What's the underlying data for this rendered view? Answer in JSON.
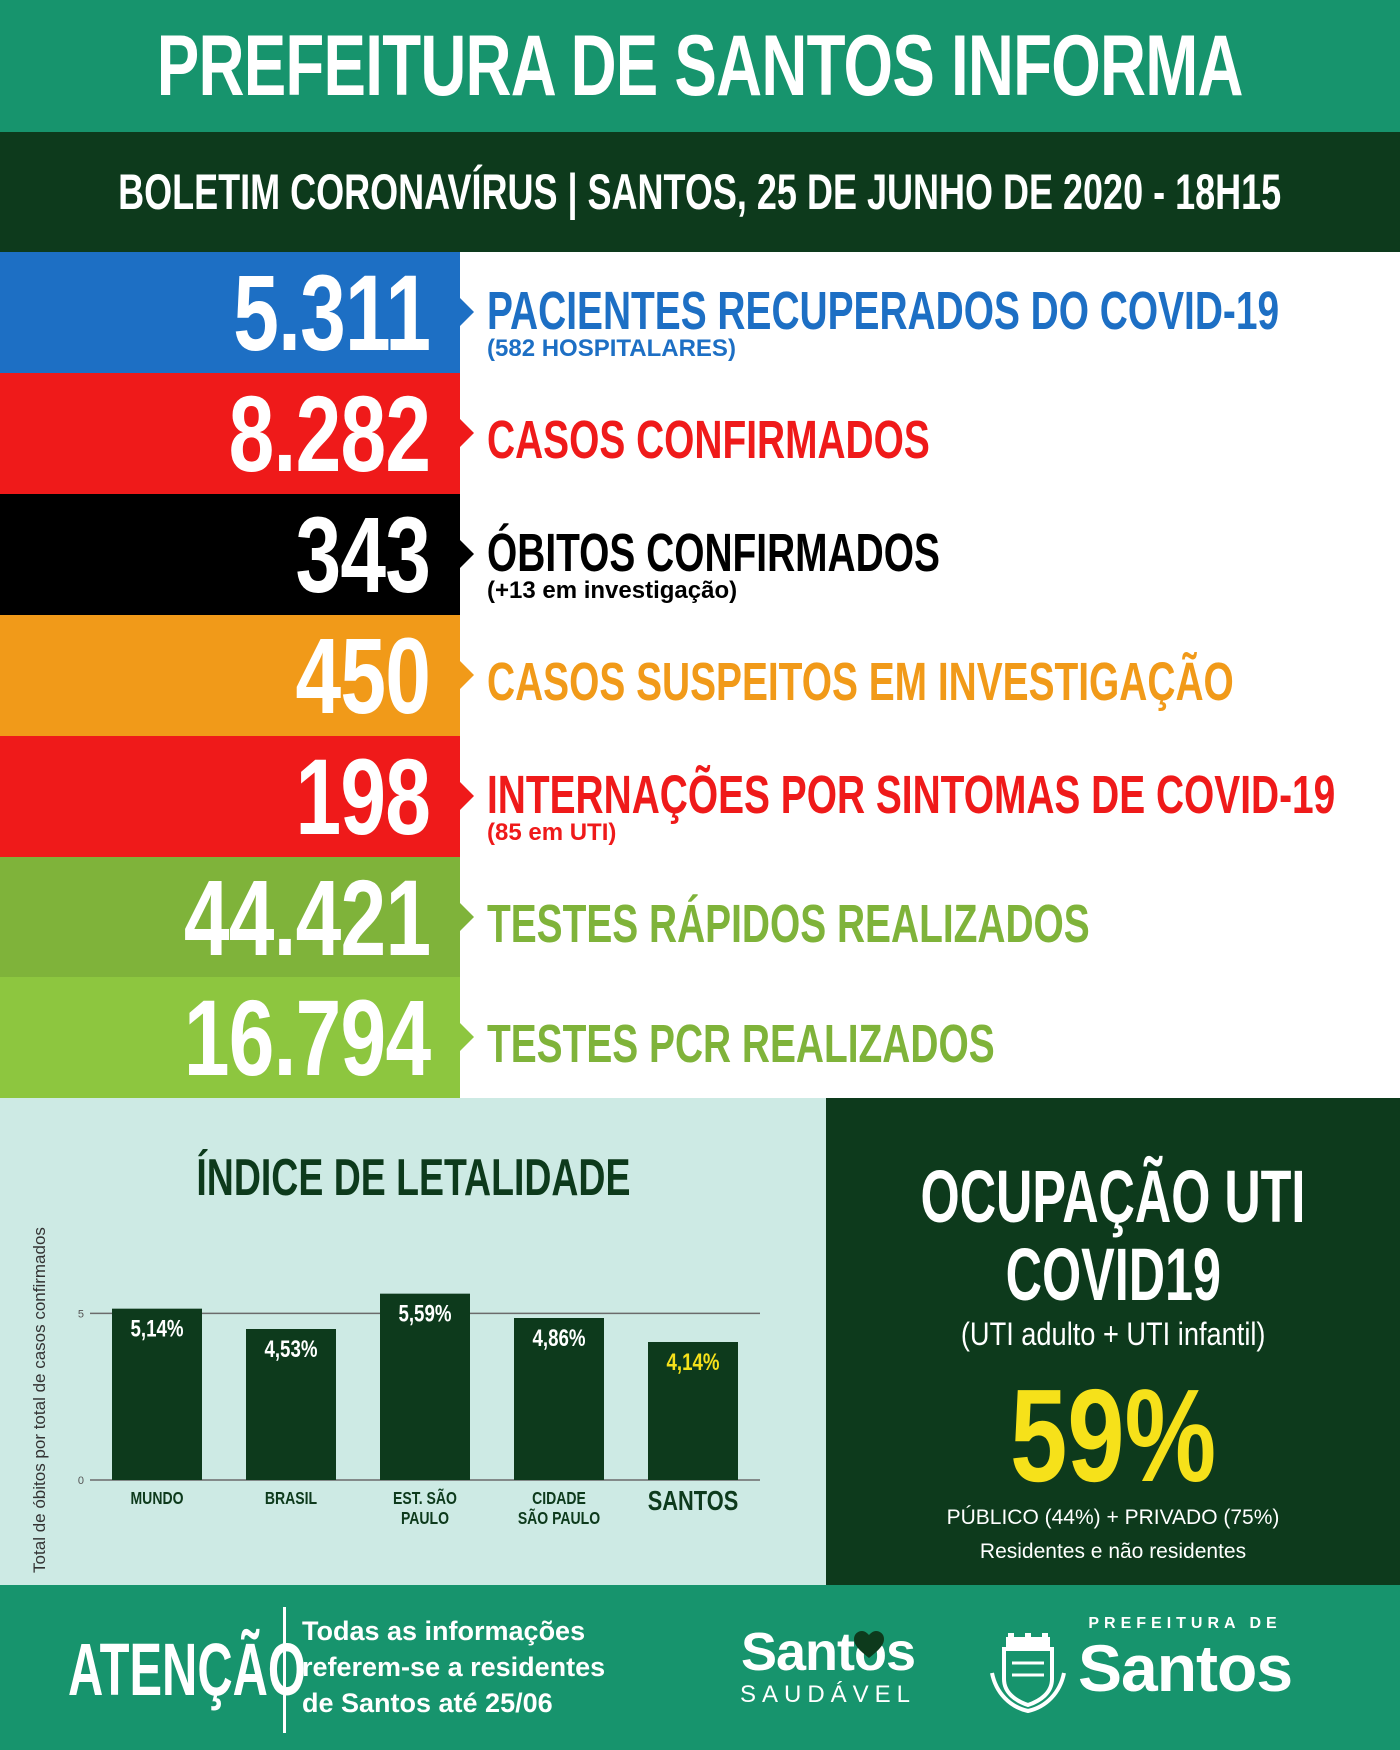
{
  "header": {
    "title": "PREFEITURA DE SANTOS INFORMA",
    "bulletin": "BOLETIM CORONAVÍRUS | SANTOS, 25 DE JUNHO DE 2020 - 18H15"
  },
  "stats": [
    {
      "value": "5.311",
      "label": "PACIENTES RECUPERADOS DO COVID-19",
      "sub": "(582 HOSPITALARES)",
      "color": "#1d6fc4",
      "label_color": "#1d6fc4"
    },
    {
      "value": "8.282",
      "label": "CASOS CONFIRMADOS",
      "sub": "",
      "color": "#ef1a1a",
      "label_color": "#ef1a1a"
    },
    {
      "value": "343",
      "label": "ÓBITOS CONFIRMADOS",
      "sub": "(+13 em investigação)",
      "color": "#000000",
      "label_color": "#000000"
    },
    {
      "value": "450",
      "label": "CASOS SUSPEITOS EM INVESTIGAÇÃO",
      "sub": "",
      "color": "#f19a19",
      "label_color": "#f19a19"
    },
    {
      "value": "198",
      "label": "INTERNAÇÕES POR SINTOMAS DE COVID-19",
      "sub": "(85 em UTI)",
      "color": "#ef1a1a",
      "label_color": "#ef1a1a"
    },
    {
      "value": "44.421",
      "label": "TESTES RÁPIDOS REALIZADOS",
      "sub": "",
      "color": "#7fb33a",
      "label_color": "#7fb33a"
    },
    {
      "value": "16.794",
      "label": "TESTES PCR REALIZADOS",
      "sub": "",
      "color": "#8dc63f",
      "label_color": "#7fb33a"
    }
  ],
  "chart_data": {
    "type": "bar",
    "title": "ÍNDICE DE LETALIDADE",
    "ylabel": "Total de óbitos por total de casos confirmados",
    "categories": [
      "MUNDO",
      "BRASIL",
      "EST. SÃO PAULO",
      "CIDADE SÃO PAULO",
      "SANTOS"
    ],
    "category_lines": [
      [
        "MUNDO"
      ],
      [
        "BRASIL"
      ],
      [
        "EST. SÃO",
        "PAULO"
      ],
      [
        "CIDADE",
        "SÃO PAULO"
      ],
      [
        "SANTOS"
      ]
    ],
    "values": [
      5.14,
      4.53,
      5.59,
      4.86,
      4.14
    ],
    "value_labels": [
      "5,14%",
      "4,53%",
      "5,59%",
      "4,86%",
      "4,14%"
    ],
    "highlight": "SANTOS",
    "highlight_color": "#f6e11a",
    "bar_color": "#0d3a1c",
    "ylim": [
      0,
      6
    ],
    "yticks": [
      0,
      5
    ],
    "grid": true
  },
  "uti": {
    "title_line1": "OCUPAÇÃO UTI",
    "title_line2": "COVID19",
    "subtitle": "(UTI adulto + UTI infantil)",
    "percent": "59%",
    "breakdown": "PÚBLICO (44%) + PRIVADO (75%)",
    "note": "Residentes e não residentes"
  },
  "footer": {
    "attention": "ATENÇÃO",
    "note": "Todas as informações referem-se a residentes de Santos até 25/06",
    "santos_saudavel_word": "Santos",
    "santos_saudavel_sub": "SAUDÁVEL",
    "prefeitura_small": "PREFEITURA DE",
    "prefeitura_big": "Santos"
  },
  "icons": [
    "heart-icon",
    "city-coat-of-arms-icon"
  ]
}
